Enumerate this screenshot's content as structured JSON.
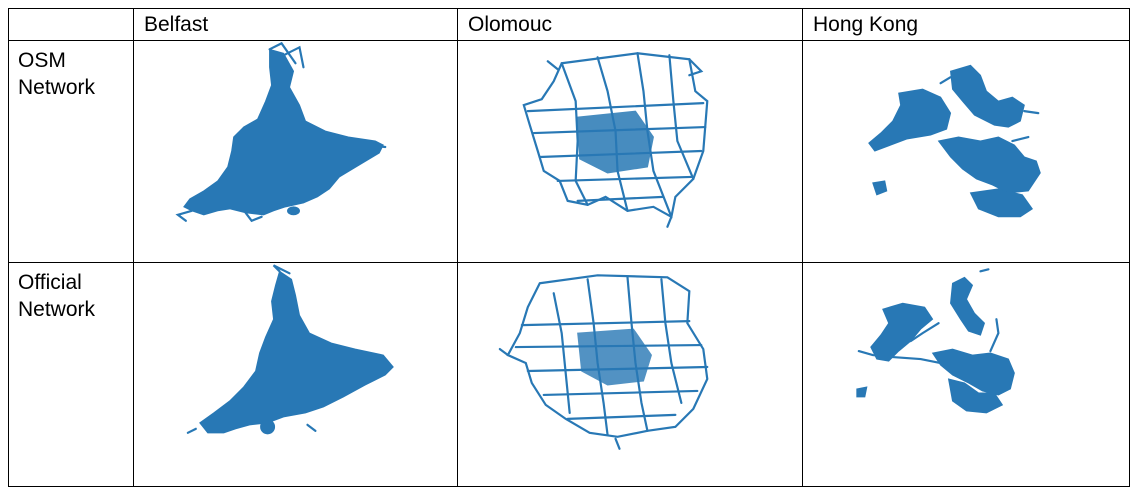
{
  "table": {
    "columns": [
      "",
      "Belfast",
      "Olomouc",
      "Hong Kong"
    ],
    "rows": [
      {
        "label": "OSM Network",
        "maps": [
          "belfast-osm-network",
          "olomouc-osm-network",
          "hongkong-osm-network"
        ]
      },
      {
        "label": "Official Network",
        "maps": [
          "belfast-official-network",
          "olomouc-official-network",
          "hongkong-official-network"
        ]
      }
    ]
  },
  "colors": {
    "network": "#2878b5",
    "border": "#000000",
    "background": "#ffffff"
  }
}
